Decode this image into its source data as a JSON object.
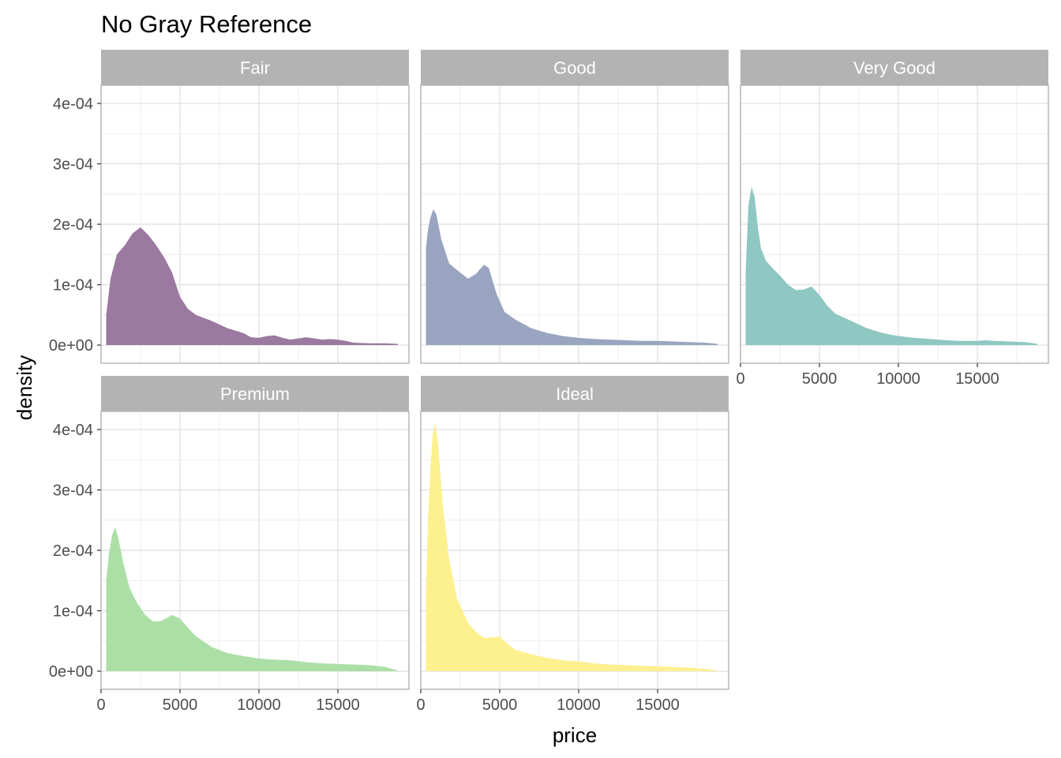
{
  "chart_data": {
    "type": "area",
    "title": "No Gray Reference",
    "xlabel": "price",
    "ylabel": "density",
    "xlim": [
      0,
      19500
    ],
    "ylim": [
      -3e-05,
      0.00043
    ],
    "x_ticks": [
      0,
      5000,
      10000,
      15000
    ],
    "x_tick_labels": [
      "0",
      "5000",
      "10000",
      "15000"
    ],
    "y_ticks": [
      0,
      0.0001,
      0.0002,
      0.0003,
      0.0004
    ],
    "y_tick_labels": [
      "0e+00",
      "1e-04",
      "2e-04",
      "3e-04",
      "4e-04"
    ],
    "grid": true,
    "facet_layout": {
      "ncol": 3,
      "nrow": 2
    },
    "panels": [
      {
        "name": "Fair",
        "color": "#9b79a0",
        "x": [
          326,
          600,
          1000,
          1500,
          2000,
          2500,
          3000,
          3500,
          4000,
          4500,
          5000,
          5500,
          6000,
          7000,
          8000,
          9000,
          9500,
          10000,
          10500,
          11000,
          11500,
          12000,
          12500,
          13000,
          13500,
          14000,
          14500,
          15000,
          15500,
          16000,
          17000,
          18000,
          18800
        ],
        "y": [
          5e-05,
          0.00011,
          0.00015,
          0.000165,
          0.000185,
          0.000195,
          0.000182,
          0.000165,
          0.000145,
          0.00012,
          8e-05,
          6e-05,
          5e-05,
          4e-05,
          2.8e-05,
          2e-05,
          1.3e-05,
          1.2e-05,
          1.5e-05,
          1.6e-05,
          1.2e-05,
          9e-06,
          1.1e-05,
          1.3e-05,
          1.1e-05,
          9e-06,
          1e-05,
          9e-06,
          7e-06,
          4e-06,
          3e-06,
          3e-06,
          2e-06
        ]
      },
      {
        "name": "Good",
        "color": "#99a4c0",
        "x": [
          326,
          450,
          600,
          800,
          1000,
          1300,
          1800,
          2500,
          3000,
          3500,
          4000,
          4300,
          4800,
          5300,
          6000,
          7000,
          8000,
          9000,
          10000,
          11000,
          12000,
          13000,
          14000,
          15000,
          16000,
          17000,
          18000,
          18800
        ],
        "y": [
          0.00016,
          0.00019,
          0.00021,
          0.000225,
          0.000215,
          0.000175,
          0.000135,
          0.00012,
          0.00011,
          0.000118,
          0.000133,
          0.000128,
          8.5e-05,
          5.5e-05,
          4.2e-05,
          2.8e-05,
          2e-05,
          1.5e-05,
          1.2e-05,
          1e-05,
          9e-06,
          8e-06,
          7e-06,
          7e-06,
          6e-06,
          5e-06,
          4e-06,
          2e-06
        ]
      },
      {
        "name": "Very Good",
        "color": "#8fc7c2",
        "x": [
          326,
          500,
          700,
          900,
          1100,
          1300,
          1600,
          2000,
          2500,
          3000,
          3500,
          4000,
          4500,
          5000,
          5500,
          6000,
          7000,
          8000,
          9000,
          10000,
          11000,
          12000,
          13000,
          14000,
          15000,
          15500,
          16000,
          17000,
          18000,
          18800
        ],
        "y": [
          0.00012,
          0.00023,
          0.000262,
          0.000245,
          0.000195,
          0.00016,
          0.00014,
          0.000128,
          0.000115,
          0.0001,
          9.1e-05,
          9.2e-05,
          9.7e-05,
          8.3e-05,
          6.5e-05,
          5.2e-05,
          4e-05,
          2.8e-05,
          2e-05,
          1.5e-05,
          1.2e-05,
          1e-05,
          8e-06,
          7e-06,
          7e-06,
          8e-06,
          7e-06,
          6e-06,
          5e-06,
          2e-06
        ]
      },
      {
        "name": "Premium",
        "color": "#acdfa6",
        "x": [
          326,
          500,
          700,
          900,
          1100,
          1400,
          1800,
          2300,
          2800,
          3300,
          3800,
          4500,
          5000,
          5500,
          6000,
          7000,
          8000,
          9000,
          10000,
          11000,
          12000,
          13000,
          14000,
          15000,
          16000,
          17000,
          18000,
          18800
        ],
        "y": [
          0.00015,
          0.000195,
          0.000225,
          0.000238,
          0.00022,
          0.00018,
          0.000138,
          0.000112,
          9.3e-05,
          8.2e-05,
          8.3e-05,
          9.3e-05,
          8.7e-05,
          7.2e-05,
          5.8e-05,
          4e-05,
          3e-05,
          2.5e-05,
          2.1e-05,
          1.9e-05,
          1.8e-05,
          1.5e-05,
          1.3e-05,
          1.2e-05,
          1.1e-05,
          1e-05,
          7e-06,
          1e-06
        ]
      },
      {
        "name": "Ideal",
        "color": "#fdf08f",
        "x": [
          326,
          450,
          600,
          750,
          900,
          1100,
          1400,
          1800,
          2300,
          3000,
          3500,
          4000,
          4500,
          5000,
          5500,
          6000,
          7000,
          8000,
          9000,
          10000,
          11000,
          12000,
          13000,
          14000,
          15000,
          16000,
          17000,
          18000,
          18800
        ],
        "y": [
          0.00012,
          0.00025,
          0.00033,
          0.00039,
          0.000412,
          0.000375,
          0.000275,
          0.000185,
          0.00012,
          8e-05,
          6.5e-05,
          5.5e-05,
          5.6e-05,
          5.7e-05,
          4.5e-05,
          3.5e-05,
          2.8e-05,
          2.2e-05,
          1.8e-05,
          1.6e-05,
          1.3e-05,
          1.1e-05,
          1e-05,
          9e-06,
          8e-06,
          7e-06,
          6e-06,
          4e-06,
          1e-06
        ]
      }
    ]
  }
}
